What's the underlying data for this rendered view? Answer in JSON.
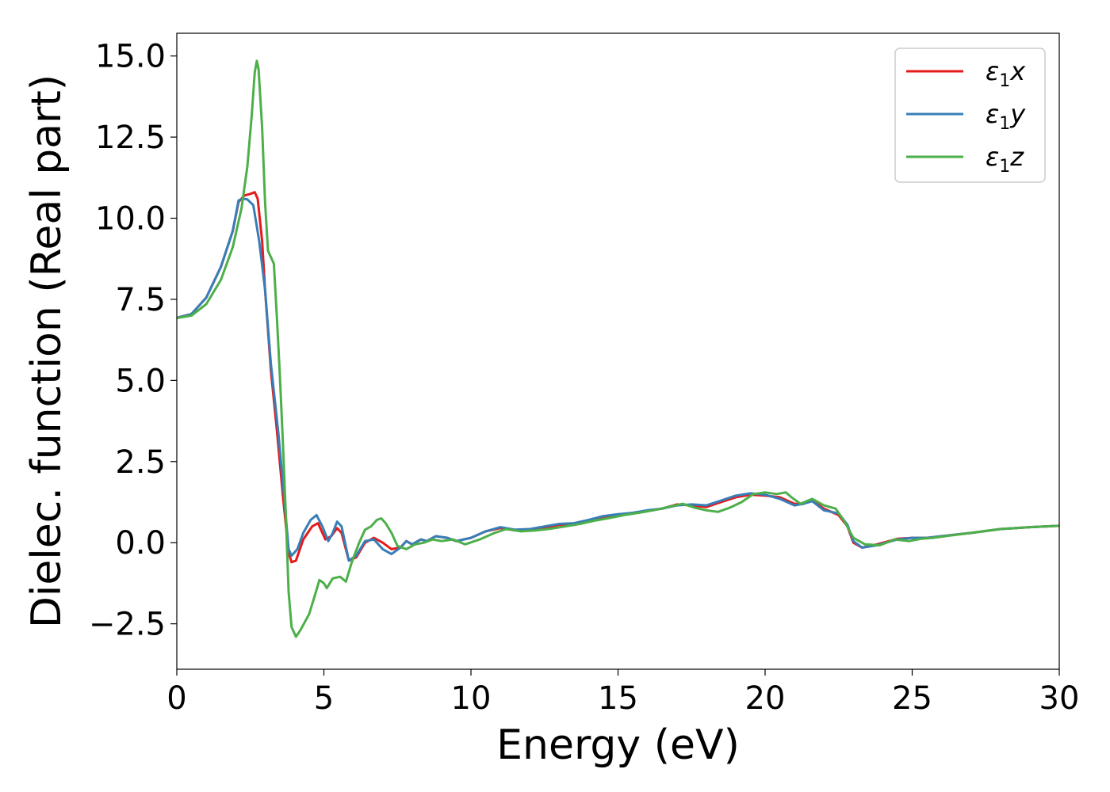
{
  "chart_data": {
    "type": "line",
    "xlabel": "Energy (eV)",
    "ylabel": "Dielec. function (Real part)",
    "xlim": [
      0,
      30
    ],
    "ylim": [
      -3.9,
      15.7
    ],
    "x_ticks": [
      {
        "value": 0,
        "label": "0"
      },
      {
        "value": 5,
        "label": "5"
      },
      {
        "value": 10,
        "label": "10"
      },
      {
        "value": 15,
        "label": "15"
      },
      {
        "value": 20,
        "label": "20"
      },
      {
        "value": 25,
        "label": "25"
      },
      {
        "value": 30,
        "label": "30"
      }
    ],
    "y_ticks": [
      {
        "value": -2.5,
        "label": "−2.5"
      },
      {
        "value": 0,
        "label": "0.0"
      },
      {
        "value": 2.5,
        "label": "2.5"
      },
      {
        "value": 5,
        "label": "5.0"
      },
      {
        "value": 7.5,
        "label": "7.5"
      },
      {
        "value": 10,
        "label": "10.0"
      },
      {
        "value": 12.5,
        "label": "12.5"
      },
      {
        "value": 15,
        "label": "15.0"
      }
    ],
    "grid": false,
    "legend_position": "top-right",
    "series": [
      {
        "legend_symbol": "ε",
        "legend_sub": "1",
        "legend_suffix": "x",
        "color": "#e41a1c",
        "points": [
          [
            0,
            6.93
          ],
          [
            0.5,
            7.05
          ],
          [
            1.0,
            7.55
          ],
          [
            1.5,
            8.5
          ],
          [
            1.9,
            9.6
          ],
          [
            2.1,
            10.5
          ],
          [
            2.3,
            10.7
          ],
          [
            2.5,
            10.75
          ],
          [
            2.65,
            10.8
          ],
          [
            2.75,
            10.6
          ],
          [
            2.9,
            9.3
          ],
          [
            3.0,
            7.8
          ],
          [
            3.2,
            5.3
          ],
          [
            3.4,
            3.5
          ],
          [
            3.6,
            1.5
          ],
          [
            3.8,
            -0.3
          ],
          [
            3.9,
            -0.6
          ],
          [
            4.05,
            -0.55
          ],
          [
            4.3,
            0.1
          ],
          [
            4.6,
            0.5
          ],
          [
            4.8,
            0.6
          ],
          [
            5.05,
            0.1
          ],
          [
            5.25,
            0.2
          ],
          [
            5.45,
            0.45
          ],
          [
            5.6,
            0.3
          ],
          [
            5.85,
            -0.55
          ],
          [
            6.1,
            -0.45
          ],
          [
            6.4,
            0.0
          ],
          [
            6.7,
            0.15
          ],
          [
            7.0,
            0.0
          ],
          [
            7.3,
            -0.2
          ],
          [
            7.6,
            -0.15
          ],
          [
            7.8,
            0.05
          ],
          [
            8.0,
            -0.05
          ],
          [
            8.3,
            0.1
          ],
          [
            8.5,
            0.05
          ],
          [
            8.8,
            0.2
          ],
          [
            9.2,
            0.15
          ],
          [
            9.5,
            0.05
          ],
          [
            10.0,
            0.15
          ],
          [
            10.5,
            0.35
          ],
          [
            11.0,
            0.45
          ],
          [
            11.5,
            0.38
          ],
          [
            12.0,
            0.4
          ],
          [
            12.5,
            0.45
          ],
          [
            13.0,
            0.55
          ],
          [
            13.5,
            0.58
          ],
          [
            14.0,
            0.68
          ],
          [
            14.5,
            0.8
          ],
          [
            15.0,
            0.85
          ],
          [
            15.5,
            0.92
          ],
          [
            16.0,
            0.98
          ],
          [
            16.5,
            1.05
          ],
          [
            17.0,
            1.18
          ],
          [
            17.5,
            1.15
          ],
          [
            18.0,
            1.1
          ],
          [
            18.5,
            1.25
          ],
          [
            19.0,
            1.4
          ],
          [
            19.5,
            1.48
          ],
          [
            20.0,
            1.45
          ],
          [
            20.5,
            1.4
          ],
          [
            21.0,
            1.2
          ],
          [
            21.3,
            1.2
          ],
          [
            21.6,
            1.3
          ],
          [
            22.0,
            1.05
          ],
          [
            22.5,
            0.85
          ],
          [
            22.8,
            0.5
          ],
          [
            23.0,
            0.0
          ],
          [
            23.3,
            -0.15
          ],
          [
            23.8,
            -0.05
          ],
          [
            24.5,
            0.12
          ],
          [
            25.0,
            0.15
          ],
          [
            25.5,
            0.15
          ],
          [
            26.0,
            0.2
          ],
          [
            27.0,
            0.3
          ],
          [
            28.0,
            0.42
          ],
          [
            29.0,
            0.48
          ],
          [
            30.0,
            0.52
          ]
        ]
      },
      {
        "legend_symbol": "ε",
        "legend_sub": "1",
        "legend_suffix": "y",
        "color": "#377eb8",
        "points": [
          [
            0,
            6.93
          ],
          [
            0.5,
            7.05
          ],
          [
            1.0,
            7.55
          ],
          [
            1.5,
            8.5
          ],
          [
            1.9,
            9.6
          ],
          [
            2.1,
            10.55
          ],
          [
            2.25,
            10.6
          ],
          [
            2.4,
            10.58
          ],
          [
            2.6,
            10.4
          ],
          [
            2.8,
            9.3
          ],
          [
            3.0,
            7.8
          ],
          [
            3.2,
            5.5
          ],
          [
            3.45,
            3.4
          ],
          [
            3.65,
            1.4
          ],
          [
            3.8,
            -0.2
          ],
          [
            3.9,
            -0.4
          ],
          [
            4.1,
            -0.2
          ],
          [
            4.3,
            0.3
          ],
          [
            4.55,
            0.7
          ],
          [
            4.75,
            0.85
          ],
          [
            4.95,
            0.5
          ],
          [
            5.15,
            0.05
          ],
          [
            5.3,
            0.3
          ],
          [
            5.45,
            0.65
          ],
          [
            5.6,
            0.5
          ],
          [
            5.85,
            -0.55
          ],
          [
            6.1,
            -0.4
          ],
          [
            6.4,
            0.05
          ],
          [
            6.7,
            0.1
          ],
          [
            7.0,
            -0.2
          ],
          [
            7.3,
            -0.35
          ],
          [
            7.6,
            -0.15
          ],
          [
            7.8,
            0.05
          ],
          [
            8.0,
            -0.05
          ],
          [
            8.3,
            0.1
          ],
          [
            8.5,
            0.05
          ],
          [
            8.8,
            0.2
          ],
          [
            9.2,
            0.15
          ],
          [
            9.5,
            0.05
          ],
          [
            10.0,
            0.15
          ],
          [
            10.5,
            0.35
          ],
          [
            11.0,
            0.48
          ],
          [
            11.5,
            0.4
          ],
          [
            12.0,
            0.42
          ],
          [
            12.5,
            0.5
          ],
          [
            13.0,
            0.58
          ],
          [
            13.5,
            0.6
          ],
          [
            14.0,
            0.7
          ],
          [
            14.5,
            0.82
          ],
          [
            15.0,
            0.88
          ],
          [
            15.5,
            0.92
          ],
          [
            16.0,
            1.0
          ],
          [
            16.5,
            1.05
          ],
          [
            17.0,
            1.15
          ],
          [
            17.5,
            1.18
          ],
          [
            18.0,
            1.15
          ],
          [
            18.5,
            1.3
          ],
          [
            19.0,
            1.45
          ],
          [
            19.5,
            1.52
          ],
          [
            20.0,
            1.48
          ],
          [
            20.5,
            1.35
          ],
          [
            21.0,
            1.15
          ],
          [
            21.3,
            1.2
          ],
          [
            21.6,
            1.28
          ],
          [
            22.0,
            1.0
          ],
          [
            22.5,
            0.9
          ],
          [
            22.8,
            0.55
          ],
          [
            23.0,
            0.05
          ],
          [
            23.3,
            -0.15
          ],
          [
            23.8,
            -0.08
          ],
          [
            24.5,
            0.1
          ],
          [
            25.0,
            0.15
          ],
          [
            25.5,
            0.15
          ],
          [
            26.0,
            0.2
          ],
          [
            27.0,
            0.3
          ],
          [
            28.0,
            0.42
          ],
          [
            29.0,
            0.48
          ],
          [
            30.0,
            0.52
          ]
        ]
      },
      {
        "legend_symbol": "ε",
        "legend_sub": "1",
        "legend_suffix": "z",
        "color": "#4daf4a",
        "points": [
          [
            0,
            6.92
          ],
          [
            0.5,
            7.0
          ],
          [
            1.0,
            7.35
          ],
          [
            1.5,
            8.1
          ],
          [
            1.9,
            9.1
          ],
          [
            2.2,
            10.3
          ],
          [
            2.4,
            11.6
          ],
          [
            2.55,
            13.2
          ],
          [
            2.65,
            14.5
          ],
          [
            2.72,
            14.85
          ],
          [
            2.78,
            14.6
          ],
          [
            2.9,
            12.8
          ],
          [
            3.0,
            10.5
          ],
          [
            3.1,
            9.0
          ],
          [
            3.2,
            8.8
          ],
          [
            3.3,
            8.6
          ],
          [
            3.4,
            7.0
          ],
          [
            3.5,
            5.2
          ],
          [
            3.6,
            3.2
          ],
          [
            3.7,
            1.0
          ],
          [
            3.8,
            -1.5
          ],
          [
            3.9,
            -2.6
          ],
          [
            4.05,
            -2.9
          ],
          [
            4.2,
            -2.7
          ],
          [
            4.5,
            -2.2
          ],
          [
            4.7,
            -1.6
          ],
          [
            4.85,
            -1.15
          ],
          [
            5.0,
            -1.25
          ],
          [
            5.1,
            -1.4
          ],
          [
            5.3,
            -1.1
          ],
          [
            5.55,
            -1.05
          ],
          [
            5.75,
            -1.2
          ],
          [
            5.95,
            -0.6
          ],
          [
            6.2,
            0.0
          ],
          [
            6.4,
            0.4
          ],
          [
            6.6,
            0.5
          ],
          [
            6.8,
            0.7
          ],
          [
            6.95,
            0.75
          ],
          [
            7.1,
            0.6
          ],
          [
            7.3,
            0.3
          ],
          [
            7.5,
            -0.1
          ],
          [
            7.8,
            -0.2
          ],
          [
            8.1,
            -0.05
          ],
          [
            8.4,
            0.0
          ],
          [
            8.7,
            0.1
          ],
          [
            9.0,
            0.05
          ],
          [
            9.4,
            0.1
          ],
          [
            9.8,
            -0.05
          ],
          [
            10.3,
            0.1
          ],
          [
            10.8,
            0.3
          ],
          [
            11.2,
            0.42
          ],
          [
            11.7,
            0.35
          ],
          [
            12.2,
            0.38
          ],
          [
            12.7,
            0.43
          ],
          [
            13.2,
            0.5
          ],
          [
            13.7,
            0.58
          ],
          [
            14.2,
            0.68
          ],
          [
            14.7,
            0.76
          ],
          [
            15.2,
            0.85
          ],
          [
            15.7,
            0.92
          ],
          [
            16.2,
            1.0
          ],
          [
            16.7,
            1.1
          ],
          [
            17.2,
            1.2
          ],
          [
            17.6,
            1.08
          ],
          [
            18.0,
            1.0
          ],
          [
            18.4,
            0.95
          ],
          [
            18.8,
            1.08
          ],
          [
            19.2,
            1.25
          ],
          [
            19.6,
            1.5
          ],
          [
            20.0,
            1.55
          ],
          [
            20.4,
            1.5
          ],
          [
            20.7,
            1.55
          ],
          [
            20.9,
            1.4
          ],
          [
            21.2,
            1.2
          ],
          [
            21.6,
            1.35
          ],
          [
            22.0,
            1.15
          ],
          [
            22.4,
            1.05
          ],
          [
            22.7,
            0.65
          ],
          [
            23.0,
            0.15
          ],
          [
            23.4,
            -0.05
          ],
          [
            23.9,
            -0.08
          ],
          [
            24.4,
            0.1
          ],
          [
            24.9,
            0.05
          ],
          [
            25.3,
            0.12
          ],
          [
            25.7,
            0.15
          ],
          [
            26.3,
            0.22
          ],
          [
            27.0,
            0.3
          ],
          [
            28.0,
            0.42
          ],
          [
            29.0,
            0.48
          ],
          [
            30.0,
            0.52
          ]
        ]
      }
    ]
  }
}
